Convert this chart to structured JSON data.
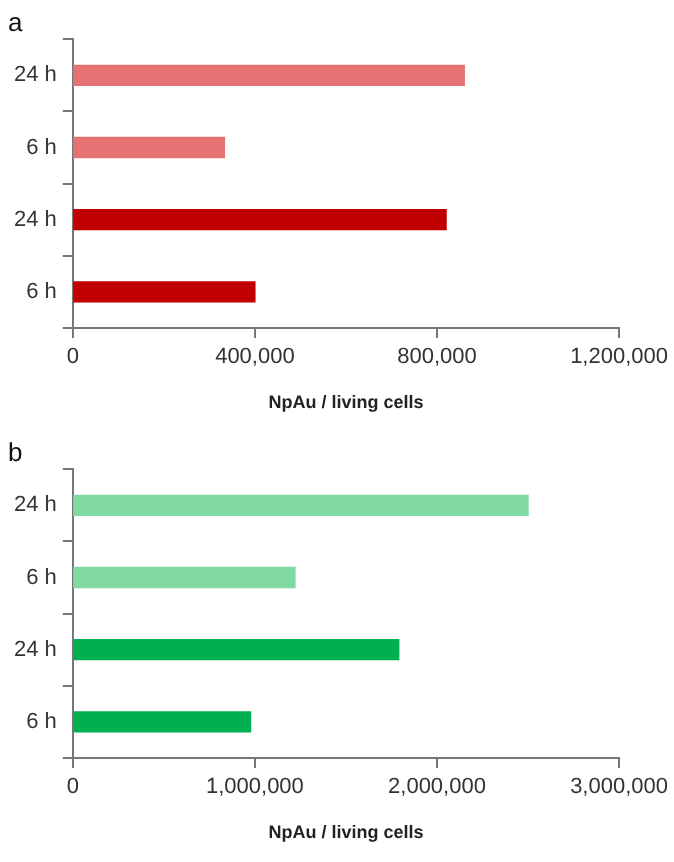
{
  "chart_data": [
    {
      "type": "bar",
      "title": "a",
      "orientation": "horizontal",
      "categories": [
        "24 h",
        "6 h",
        "24 h",
        "6 h"
      ],
      "values": [
        860000,
        333000,
        820000,
        400000
      ],
      "colors": [
        "#e57373",
        "#e57373",
        "#c00000",
        "#c00000"
      ],
      "xlabel": "NpAu / living cells",
      "xlim": [
        0,
        1200000
      ],
      "xticks": [
        0,
        {
          "value": 400000,
          "label": "400,000"
        },
        {
          "value": 800000,
          "label": "800,000"
        },
        {
          "value": 1200000,
          "label": "1,200,000"
        }
      ],
      "grid": false,
      "legend": false
    },
    {
      "type": "bar",
      "title": "b",
      "orientation": "horizontal",
      "categories": [
        "24 h",
        "6 h",
        "24 h",
        "6 h"
      ],
      "values": [
        2500000,
        1220000,
        1790000,
        976000
      ],
      "colors": [
        "#7fd9a0",
        "#7fd9a0",
        "#00b050",
        "#00b050"
      ],
      "xlabel": "NpAu / living cells",
      "xlim": [
        0,
        3000000
      ],
      "xticks": [
        0,
        {
          "value": 1000000,
          "label": "1,000,000"
        },
        {
          "value": 2000000,
          "label": "2,000,000"
        },
        {
          "value": 3000000,
          "label": "3,000,000"
        }
      ],
      "grid": false,
      "legend": false
    }
  ]
}
